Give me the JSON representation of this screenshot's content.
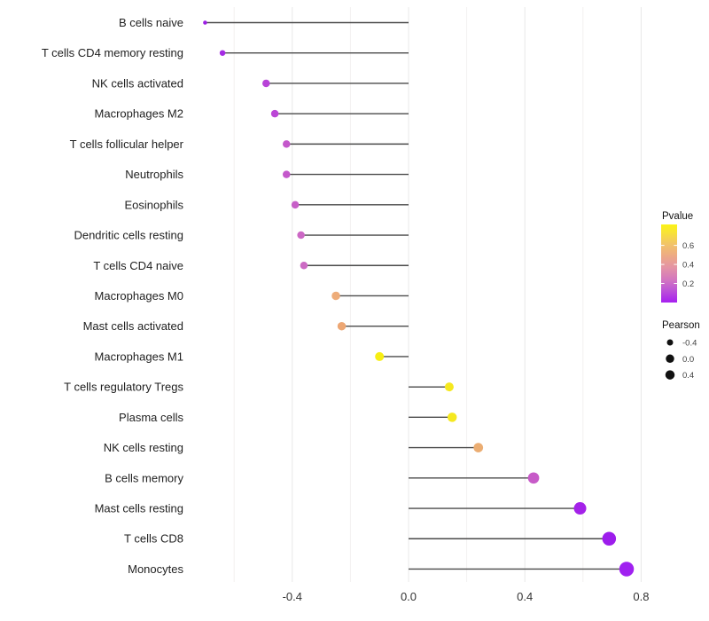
{
  "chart_data": {
    "type": "lollipop",
    "title": "",
    "xlabel": "",
    "ylabel": "",
    "x_ticks": [
      -0.4,
      0.0,
      0.4,
      0.8
    ],
    "x_tick_labels": [
      "-0.4",
      "0.0",
      "0.4",
      "0.8"
    ],
    "x_minor_grid": [
      -0.6,
      -0.2,
      0.2,
      0.6
    ],
    "xlim": [
      -0.78,
      0.83
    ],
    "baseline": 0.0,
    "grid_on": true,
    "legend_position": "right",
    "points": [
      {
        "label": "B cells naive",
        "pearson": -0.7,
        "pvalue_est": 0.02,
        "color": "#9C1FE4",
        "diameter": 4.5
      },
      {
        "label": "T cells CD4 memory resting",
        "pearson": -0.64,
        "pvalue_est": 0.04,
        "color": "#A52BE4",
        "diameter": 6.5
      },
      {
        "label": "NK cells activated",
        "pearson": -0.49,
        "pvalue_est": 0.1,
        "color": "#B843D8",
        "diameter": 8.5
      },
      {
        "label": "Macrophages M2",
        "pearson": -0.46,
        "pvalue_est": 0.11,
        "color": "#BB46D6",
        "diameter": 8.5
      },
      {
        "label": "T cells follicular helper",
        "pearson": -0.42,
        "pvalue_est": 0.15,
        "color": "#C458CB",
        "diameter": 8.5
      },
      {
        "label": "Neutrophils",
        "pearson": -0.42,
        "pvalue_est": 0.15,
        "color": "#C458CB",
        "diameter": 8.5
      },
      {
        "label": "Eosinophils",
        "pearson": -0.39,
        "pvalue_est": 0.17,
        "color": "#C75FC8",
        "diameter": 8.5
      },
      {
        "label": "Dendritic cells resting",
        "pearson": -0.37,
        "pvalue_est": 0.19,
        "color": "#CC68C5",
        "diameter": 8.5
      },
      {
        "label": "T cells CD4 naive",
        "pearson": -0.36,
        "pvalue_est": 0.2,
        "color": "#CC6AC4",
        "diameter": 8.5
      },
      {
        "label": "Macrophages M0",
        "pearson": -0.25,
        "pvalue_est": 0.48,
        "color": "#EEAC79",
        "diameter": 9.5
      },
      {
        "label": "Mast cells activated",
        "pearson": -0.23,
        "pvalue_est": 0.46,
        "color": "#EDA774",
        "diameter": 9.5
      },
      {
        "label": "Macrophages M1",
        "pearson": -0.1,
        "pvalue_est": 0.72,
        "color": "#F7EE12",
        "diameter": 10
      },
      {
        "label": "T cells regulatory  Tregs",
        "pearson": 0.14,
        "pvalue_est": 0.68,
        "color": "#F5E81F",
        "diameter": 10
      },
      {
        "label": "Plasma cells",
        "pearson": 0.15,
        "pvalue_est": 0.68,
        "color": "#F5E81F",
        "diameter": 10.5
      },
      {
        "label": "NK cells resting",
        "pearson": 0.24,
        "pvalue_est": 0.48,
        "color": "#EBAD72",
        "diameter": 10.7
      },
      {
        "label": "B cells memory",
        "pearson": 0.43,
        "pvalue_est": 0.16,
        "color": "#C75BC8",
        "diameter": 12.7
      },
      {
        "label": "Mast cells resting",
        "pearson": 0.59,
        "pvalue_est": 0.03,
        "color": "#A422E9",
        "diameter": 14
      },
      {
        "label": "T cells CD8",
        "pearson": 0.69,
        "pvalue_est": 0.02,
        "color": "#9D1DEC",
        "diameter": 15.5
      },
      {
        "label": "Monocytes",
        "pearson": 0.75,
        "pvalue_est": 0.02,
        "color": "#A021F0",
        "diameter": 16.5
      }
    ],
    "legend": {
      "pvalue": {
        "title": "Pvalue",
        "ticks": [
          0.6,
          0.4,
          0.2
        ],
        "tick_labels": [
          "0.6",
          "0.4",
          "0.2"
        ],
        "range": [
          0.0,
          0.82
        ],
        "gradient_stops": [
          {
            "offset": 0.0,
            "color": "#FBF316"
          },
          {
            "offset": 0.1,
            "color": "#F8E336"
          },
          {
            "offset": 0.25,
            "color": "#F2C468"
          },
          {
            "offset": 0.4,
            "color": "#EDAA85"
          },
          {
            "offset": 0.55,
            "color": "#E494A5"
          },
          {
            "offset": 0.7,
            "color": "#D478BE"
          },
          {
            "offset": 0.82,
            "color": "#C05AD3"
          },
          {
            "offset": 1.0,
            "color": "#A61FF0"
          }
        ]
      },
      "pearson": {
        "title": "Pearson",
        "items": [
          {
            "label": "-0.4",
            "diameter": 7
          },
          {
            "label": "0.0",
            "diameter": 9.5
          },
          {
            "label": "0.4",
            "diameter": 10.5
          }
        ],
        "dot_color": "#111111"
      }
    },
    "colors": {
      "stick": "#4A4A4A",
      "grid_major": "#E8E8E8",
      "grid_minor": "#F3F1F0"
    }
  }
}
